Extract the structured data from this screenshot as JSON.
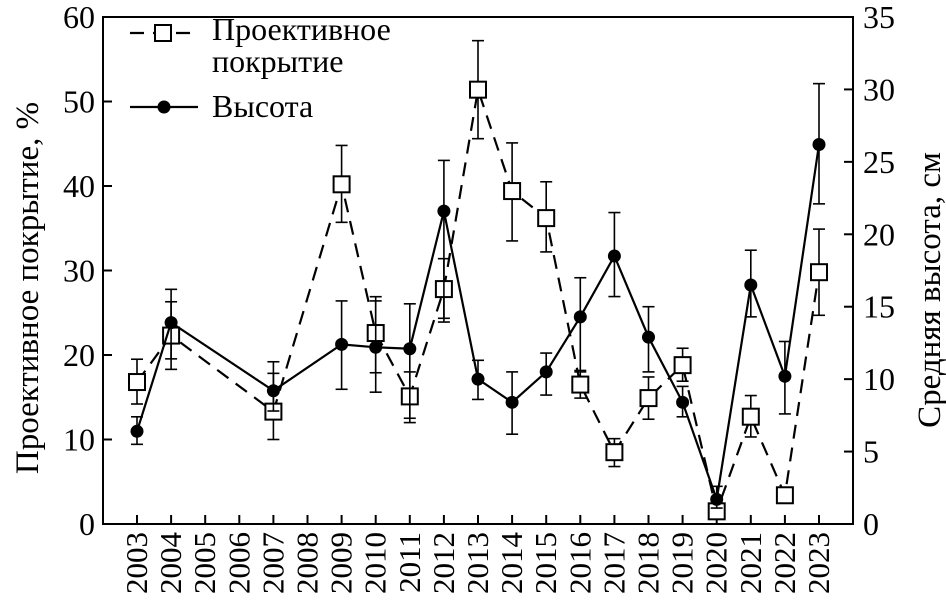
{
  "chart_data": {
    "type": "line",
    "categories": [
      "2003",
      "2004",
      "2005",
      "2006",
      "2007",
      "2008",
      "2009",
      "2010",
      "2011",
      "2012",
      "2013",
      "2014",
      "2015",
      "2016",
      "2017",
      "2018",
      "2019",
      "2020",
      "2021",
      "2022",
      "2023"
    ],
    "series": [
      {
        "name": "Проективное покрытие",
        "axis": "left",
        "line_style": "dashed",
        "marker": "open-square",
        "points": [
          {
            "x": "2003",
            "y": 16.8,
            "err_low": 14.2,
            "err_high": 19.5
          },
          {
            "x": "2004",
            "y": 22.3,
            "err_low": 18.3,
            "err_high": 26.3
          },
          {
            "x": "2007",
            "y": 13.3,
            "err_low": 10.0,
            "err_high": 19.2
          },
          {
            "x": "2009",
            "y": 40.2,
            "err_low": 35.7,
            "err_high": 44.8
          },
          {
            "x": "2010",
            "y": 22.6,
            "err_low": 17.9,
            "err_high": 26.9
          },
          {
            "x": "2011",
            "y": 15.1,
            "err_low": 12.0,
            "err_high": 18.0
          },
          {
            "x": "2012",
            "y": 27.8,
            "err_low": 23.9,
            "err_high": 31.4
          },
          {
            "x": "2013",
            "y": 51.4,
            "err_low": 45.6,
            "err_high": 57.2
          },
          {
            "x": "2014",
            "y": 39.4,
            "err_low": 33.5,
            "err_high": 45.1
          },
          {
            "x": "2015",
            "y": 36.2,
            "err_low": 32.2,
            "err_high": 40.5
          },
          {
            "x": "2016",
            "y": 16.5,
            "err_low": 14.9,
            "err_high": 18.0
          },
          {
            "x": "2017",
            "y": 8.5,
            "err_low": 6.8,
            "err_high": 10.1
          },
          {
            "x": "2018",
            "y": 14.9,
            "err_low": 12.4,
            "err_high": 17.4
          },
          {
            "x": "2019",
            "y": 18.8,
            "err_low": 16.9,
            "err_high": 20.8
          },
          {
            "x": "2020",
            "y": 1.5,
            "err_low": 0.7,
            "err_high": 2.4
          },
          {
            "x": "2021",
            "y": 12.7,
            "err_low": 10.3,
            "err_high": 15.2
          },
          {
            "x": "2022",
            "y": 3.4,
            "err_low": 2.5,
            "err_high": 4.3
          },
          {
            "x": "2023",
            "y": 29.8,
            "err_low": 24.7,
            "err_high": 34.9
          }
        ]
      },
      {
        "name": "Высота",
        "axis": "right",
        "line_style": "solid",
        "marker": "filled-circle",
        "points": [
          {
            "x": "2003",
            "y": 6.4,
            "err_low": 5.5,
            "err_high": 7.4
          },
          {
            "x": "2004",
            "y": 13.9,
            "err_low": 11.4,
            "err_high": 16.2
          },
          {
            "x": "2007",
            "y": 9.2,
            "err_low": 7.8,
            "err_high": 10.4
          },
          {
            "x": "2009",
            "y": 12.4,
            "err_low": 9.3,
            "err_high": 15.4
          },
          {
            "x": "2010",
            "y": 12.2,
            "err_low": 9.1,
            "err_high": 15.4
          },
          {
            "x": "2011",
            "y": 12.1,
            "err_low": 7.3,
            "err_high": 15.2
          },
          {
            "x": "2012",
            "y": 21.6,
            "err_low": 14.2,
            "err_high": 25.1
          },
          {
            "x": "2013",
            "y": 10.0,
            "err_low": 8.6,
            "err_high": 11.3
          },
          {
            "x": "2014",
            "y": 8.4,
            "err_low": 6.2,
            "err_high": 10.5
          },
          {
            "x": "2015",
            "y": 10.5,
            "err_low": 8.9,
            "err_high": 11.8
          },
          {
            "x": "2016",
            "y": 14.3,
            "err_low": 10.6,
            "err_high": 17.0
          },
          {
            "x": "2017",
            "y": 18.5,
            "err_low": 15.7,
            "err_high": 21.5
          },
          {
            "x": "2018",
            "y": 12.9,
            "err_low": 10.5,
            "err_high": 15.0
          },
          {
            "x": "2019",
            "y": 8.4,
            "err_low": 7.4,
            "err_high": 9.5
          },
          {
            "x": "2020",
            "y": 1.7,
            "err_low": 1.1,
            "err_high": 2.6
          },
          {
            "x": "2021",
            "y": 16.5,
            "err_low": 14.3,
            "err_high": 18.9
          },
          {
            "x": "2022",
            "y": 10.2,
            "err_low": 7.6,
            "err_high": 12.6
          },
          {
            "x": "2023",
            "y": 26.2,
            "err_low": 22.1,
            "err_high": 30.4
          }
        ]
      }
    ],
    "y_left": {
      "label": "Проективное покрытие, %",
      "min": 0,
      "max": 60,
      "ticks": [
        "0",
        "10",
        "20",
        "30",
        "40",
        "50",
        "60"
      ]
    },
    "y_right": {
      "label": "Средняя высота, см",
      "min": 0,
      "max": 35,
      "ticks": [
        "0",
        "5",
        "10",
        "15",
        "20",
        "25",
        "30",
        "35"
      ]
    },
    "grid": false,
    "legend_position": "top-left",
    "legend": {
      "coverage_line1": "Проективное",
      "coverage_line2": "покрытие",
      "height": "Высота"
    }
  }
}
